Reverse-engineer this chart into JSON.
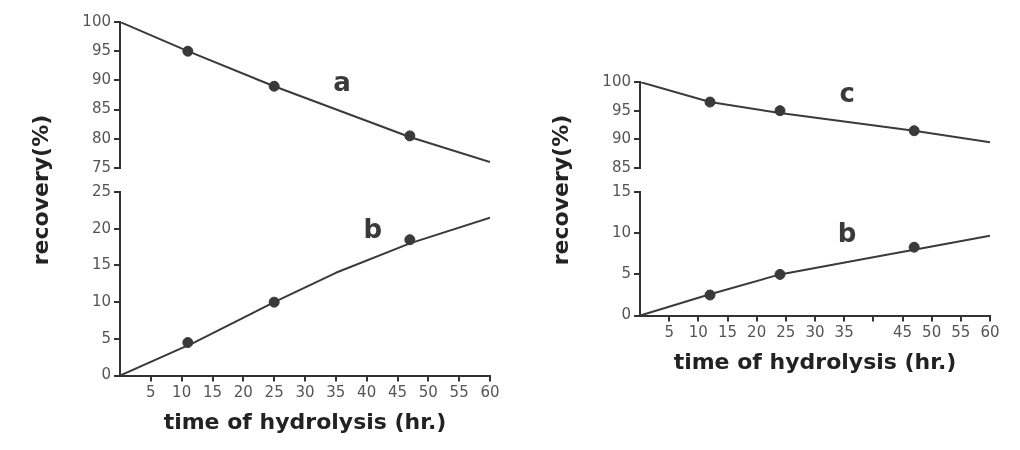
{
  "chart_data": [
    {
      "type": "line",
      "xlim": [
        0,
        60
      ],
      "ylim": [
        75,
        100
      ],
      "yticks": [
        75,
        80,
        85,
        90,
        95,
        100
      ],
      "tick_labels": "y",
      "ylabel": "recovery(%)",
      "series": [
        {
          "name": "a",
          "marker": "none",
          "color": "#3a3a3a",
          "x": [
            0,
            11,
            25,
            47,
            60
          ],
          "values": [
            100,
            95,
            89,
            80.3,
            76
          ]
        },
        {
          "type": "scatter",
          "marker": "circle",
          "color": "#3a3a3a",
          "x": [
            11,
            25,
            47
          ],
          "values": [
            95,
            89,
            80.5
          ]
        }
      ]
    },
    {
      "type": "line",
      "xlim": [
        0,
        60
      ],
      "ylim": [
        0,
        25
      ],
      "yticks": [
        0,
        5,
        10,
        15,
        20,
        25
      ],
      "xticks": [
        5,
        10,
        15,
        20,
        25,
        30,
        35,
        40,
        45,
        50,
        55,
        60
      ],
      "xlabel": "time of hydrolysis (hr.)",
      "series": [
        {
          "name": "b",
          "marker": "none",
          "color": "#3a3a3a",
          "x": [
            0,
            12,
            25,
            35,
            47,
            60
          ],
          "values": [
            0,
            4.5,
            10,
            14,
            18,
            21.5
          ]
        },
        {
          "type": "scatter",
          "marker": "circle",
          "color": "#3a3a3a",
          "x": [
            11,
            25,
            47
          ],
          "values": [
            4.5,
            10,
            18.5
          ]
        }
      ]
    },
    {
      "type": "line",
      "xlim": [
        0,
        60
      ],
      "ylim": [
        85,
        100
      ],
      "yticks": [
        85,
        90,
        95,
        100
      ],
      "tick_labels": "y",
      "ylabel": "recovery(%)",
      "series": [
        {
          "name": "c",
          "marker": "none",
          "color": "#3a3a3a",
          "x": [
            0,
            12,
            24,
            47,
            60
          ],
          "values": [
            100,
            96.5,
            94.6,
            91.5,
            89.5
          ]
        },
        {
          "type": "scatter",
          "marker": "circle",
          "color": "#3a3a3a",
          "x": [
            12,
            24,
            47
          ],
          "values": [
            96.5,
            95,
            91.5
          ]
        }
      ]
    },
    {
      "type": "line",
      "xlim": [
        0,
        60
      ],
      "ylim": [
        0,
        15
      ],
      "yticks": [
        0,
        5,
        10,
        15
      ],
      "xticks": [
        5,
        10,
        15,
        20,
        25,
        30,
        35,
        {
          "value": 40,
          "label": null
        },
        45,
        50,
        55,
        60
      ],
      "xlabel": "time of hydrolysis (hr.)",
      "series": [
        {
          "name": "b",
          "marker": "none",
          "color": "#3a3a3a",
          "x": [
            0,
            12,
            24,
            47,
            60
          ],
          "values": [
            0,
            2.6,
            5,
            8,
            9.7
          ]
        },
        {
          "type": "scatter",
          "marker": "circle",
          "color": "#3a3a3a",
          "x": [
            12,
            24,
            47
          ],
          "values": [
            2.5,
            5,
            8.3
          ]
        }
      ]
    }
  ]
}
